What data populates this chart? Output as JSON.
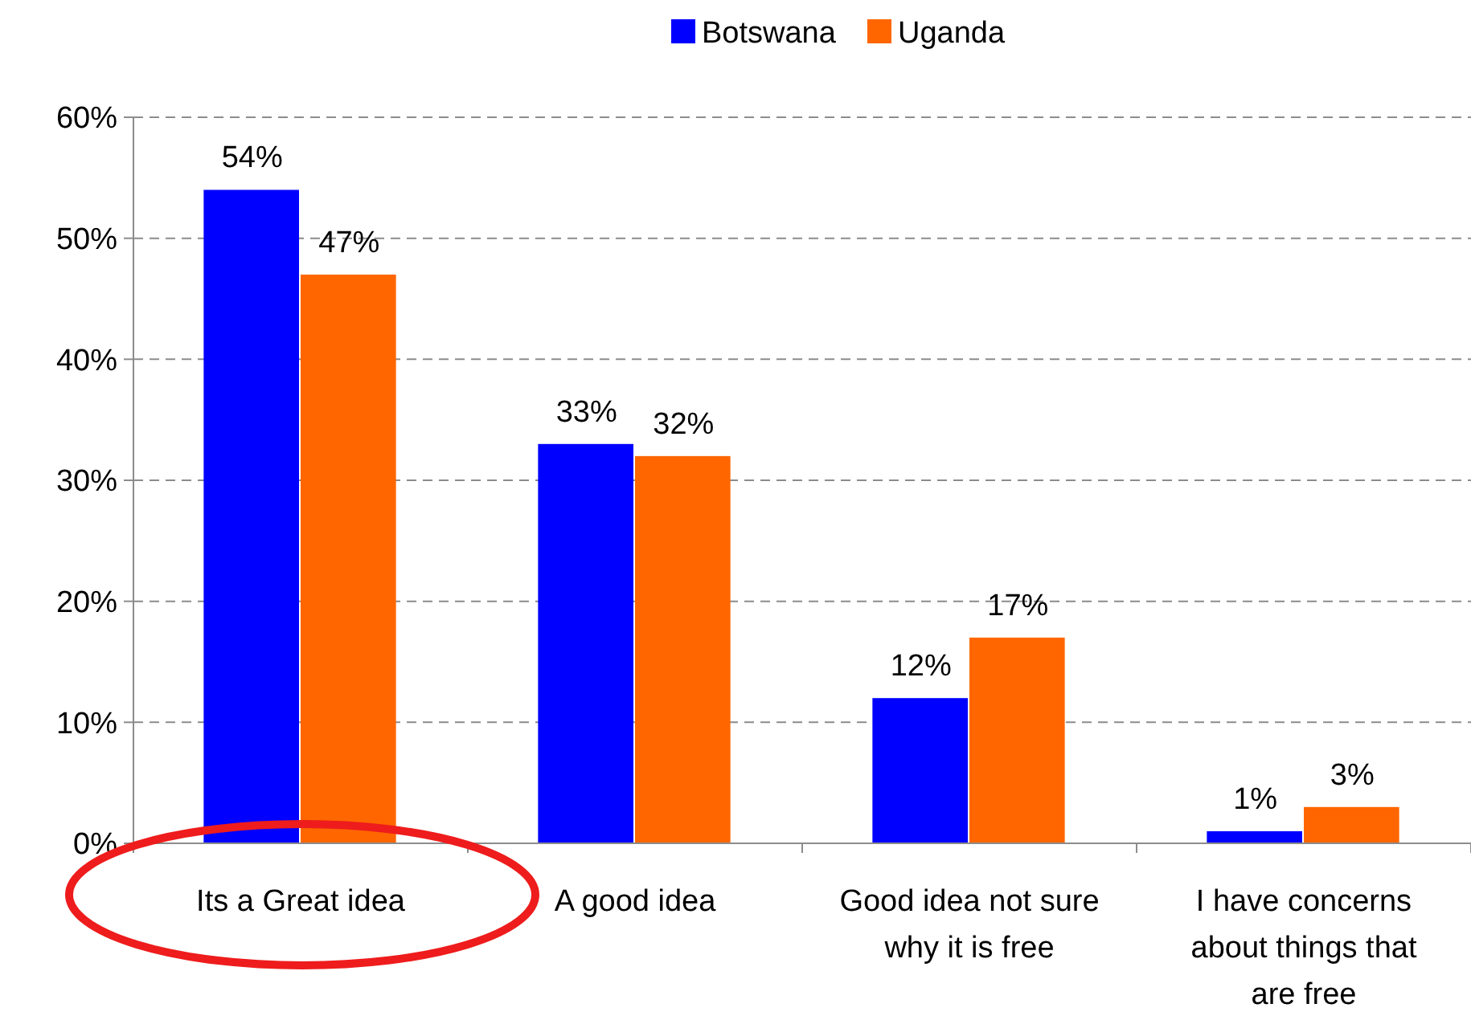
{
  "chart_data": {
    "type": "bar",
    "categories": [
      "Its a Great idea",
      "A good idea",
      "Good idea not sure why it is free",
      "I have concerns about things that are free"
    ],
    "series": [
      {
        "name": "Botswana",
        "color": "#0000ff",
        "values": [
          54,
          33,
          12,
          1
        ],
        "value_labels": [
          "54%",
          "33%",
          "12%",
          "1%"
        ]
      },
      {
        "name": "Uganda",
        "color": "#ff6600",
        "values": [
          47,
          32,
          17,
          3
        ],
        "value_labels": [
          "47%",
          "32%",
          "17%",
          "3%"
        ]
      }
    ],
    "ylim": [
      0,
      60
    ],
    "yticks": [
      {
        "value": 0,
        "label": "0%"
      },
      {
        "value": 10,
        "label": "10%"
      },
      {
        "value": 20,
        "label": "20%"
      },
      {
        "value": 30,
        "label": "30%"
      },
      {
        "value": 40,
        "label": "40%"
      },
      {
        "value": 50,
        "label": "50%"
      },
      {
        "value": 60,
        "label": "60%"
      }
    ],
    "grid": "y",
    "legend": "top"
  }
}
